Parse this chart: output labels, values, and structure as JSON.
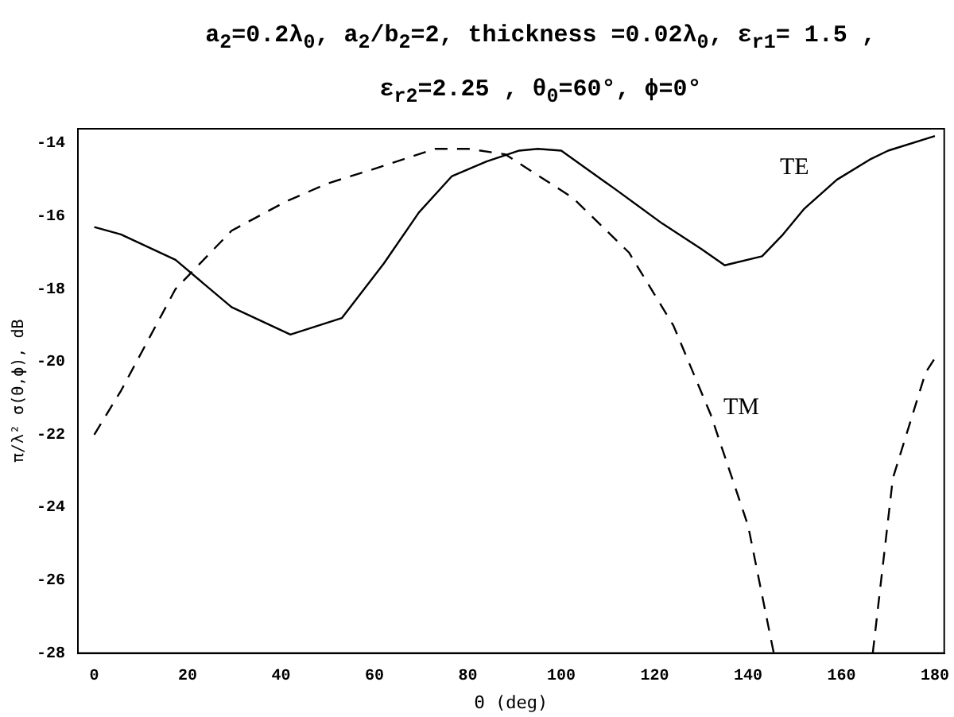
{
  "chart_data": {
    "type": "line",
    "title": "a$_{2}$=0.2λ$_{0}$,   a$_{2}$/b$_{2}$=2,   thickness =0.02λ$_{0}$,   ε$_{r1}$= 1.5 ,   ε$_{r2}$=2.25 ,   θ$_{0}$=60°,   ϕ=0°",
    "xlabel": "Θ (deg)",
    "ylabel": "π/λ² σ(Θ,ϕ), dB",
    "xlim": [
      -3.5,
      182
    ],
    "xticks": [
      0,
      20,
      40,
      60,
      80,
      100,
      120,
      140,
      160,
      180
    ],
    "ylim": [
      -28,
      -13.6
    ],
    "yticks": [
      -28,
      -26,
      -24,
      -22,
      -20,
      -18,
      -16,
      -14
    ],
    "grid": false,
    "legend": false,
    "marker": "none",
    "series": [
      {
        "name": "TE",
        "color": "#000000",
        "line_style": "solid",
        "x": [
          0,
          5.7,
          17.4,
          29.4,
          42,
          53,
          62,
          69.5,
          76.6,
          84,
          91,
          95,
          100,
          106,
          112,
          121.6,
          130,
          135,
          143,
          147.5,
          152,
          159,
          166,
          170,
          180
        ],
        "values": [
          -16.3,
          -16.5,
          -17.2,
          -18.5,
          -19.25,
          -18.8,
          -17.3,
          -15.9,
          -14.9,
          -14.5,
          -14.2,
          -14.15,
          -14.2,
          -14.75,
          -15.3,
          -16.2,
          -16.9,
          -17.35,
          -17.1,
          -16.5,
          -15.8,
          -15.0,
          -14.45,
          -14.2,
          -13.8
        ]
      },
      {
        "name": "TM",
        "color": "#000000",
        "line_style": "dashed",
        "x": [
          0,
          5.7,
          17.4,
          29.4,
          41,
          50,
          60,
          73,
          80,
          88,
          102.5,
          114.5,
          124,
          132,
          140,
          145.5,
          147,
          166.7,
          171,
          178,
          180
        ],
        "values": [
          -22.0,
          -20.8,
          -18.0,
          -16.4,
          -15.6,
          -15.1,
          -14.7,
          -14.15,
          -14.15,
          -14.3,
          -15.5,
          -17.0,
          -19.0,
          -21.45,
          -24.5,
          -28,
          null,
          -28,
          -23.2,
          -20.3,
          -19.9
        ]
      }
    ]
  }
}
